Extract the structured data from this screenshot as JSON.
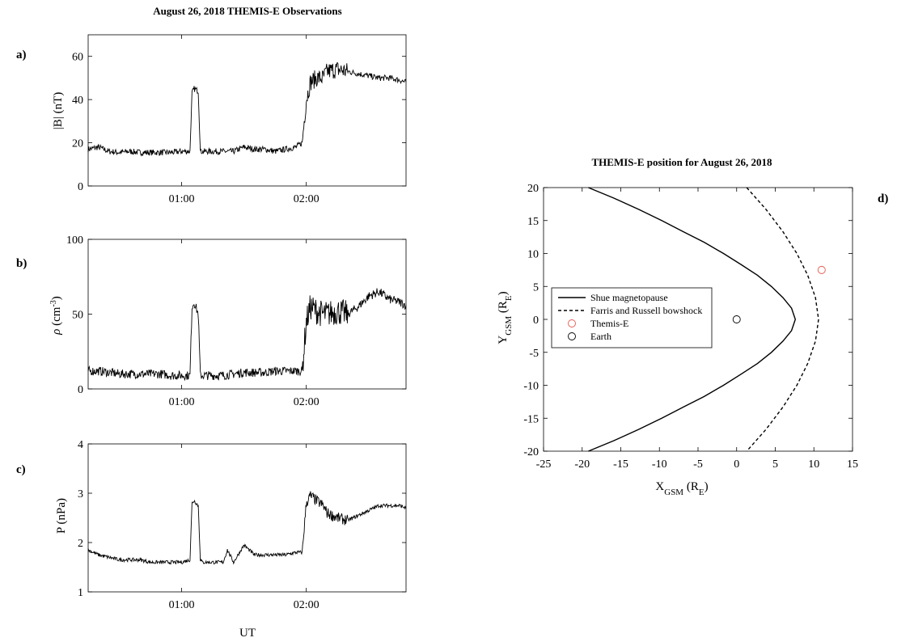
{
  "figure": {
    "left_title": "August 26, 2018 THEMIS-E Observations",
    "right_title": "THEMIS-E position for August 26, 2018"
  },
  "chart_data": [
    {
      "type": "line",
      "panel": "a)",
      "xlabel": "",
      "ylabel": "|B| (nT)",
      "xlim": [
        "00:15",
        "02:48"
      ],
      "ylim": [
        0,
        70
      ],
      "yticks": [
        0,
        20,
        40,
        60
      ],
      "xticks": [
        "01:00",
        "02:00"
      ],
      "series": [
        {
          "color": "#000000",
          "x": [
            "00:15",
            "00:20",
            "00:25",
            "00:30",
            "00:35",
            "00:40",
            "00:45",
            "00:50",
            "00:55",
            "01:00",
            "01:04",
            "01:05",
            "01:06",
            "01:08",
            "01:09",
            "01:10",
            "01:15",
            "01:20",
            "01:25",
            "01:30",
            "01:35",
            "01:40",
            "01:45",
            "01:50",
            "01:55",
            "01:58",
            "02:00",
            "02:02",
            "02:05",
            "02:08",
            "02:10",
            "02:15",
            "02:20",
            "02:25",
            "02:30",
            "02:35",
            "02:40",
            "02:45",
            "02:48"
          ],
          "values": [
            17,
            18,
            16,
            15.5,
            16,
            15.5,
            15.5,
            15.5,
            15.5,
            16,
            16,
            43,
            45,
            44,
            16,
            16,
            16,
            16,
            16,
            18,
            17,
            17,
            16,
            17,
            18,
            20,
            40,
            48,
            50,
            50,
            53,
            54,
            53,
            52,
            51,
            50,
            50,
            49,
            48
          ]
        }
      ]
    },
    {
      "type": "line",
      "panel": "b)",
      "xlabel": "",
      "ylabel": "ρ (cm-3)",
      "xlim": [
        "00:15",
        "02:48"
      ],
      "ylim": [
        0,
        100
      ],
      "yticks": [
        0,
        50,
        100
      ],
      "xticks": [
        "01:00",
        "02:00"
      ],
      "series": [
        {
          "color": "#000000",
          "x": [
            "00:15",
            "00:20",
            "00:25",
            "00:30",
            "00:35",
            "00:40",
            "00:45",
            "00:50",
            "00:55",
            "01:00",
            "01:04",
            "01:05",
            "01:06",
            "01:08",
            "01:09",
            "01:10",
            "01:15",
            "01:20",
            "01:25",
            "01:30",
            "01:35",
            "01:40",
            "01:45",
            "01:50",
            "01:55",
            "01:58",
            "02:00",
            "02:02",
            "02:05",
            "02:08",
            "02:10",
            "02:15",
            "02:20",
            "02:25",
            "02:30",
            "02:35",
            "02:40",
            "02:45",
            "02:48"
          ],
          "values": [
            12,
            12,
            11,
            10,
            10,
            10,
            10,
            10,
            9,
            9,
            9,
            55,
            58,
            50,
            9,
            9,
            9,
            9,
            10,
            11,
            11,
            11,
            12,
            12,
            12,
            12,
            45,
            55,
            52,
            50,
            50,
            52,
            50,
            55,
            62,
            65,
            60,
            58,
            56
          ]
        }
      ]
    },
    {
      "type": "line",
      "panel": "c)",
      "xlabel": "UT",
      "ylabel": "P (nPa)",
      "xlim": [
        "00:15",
        "02:48"
      ],
      "ylim": [
        1,
        4
      ],
      "yticks": [
        1,
        2,
        3,
        4
      ],
      "xticks": [
        "01:00",
        "02:00"
      ],
      "series": [
        {
          "color": "#000000",
          "x": [
            "00:15",
            "00:20",
            "00:25",
            "00:30",
            "00:35",
            "00:40",
            "00:45",
            "00:50",
            "00:55",
            "01:00",
            "01:04",
            "01:05",
            "01:06",
            "01:08",
            "01:09",
            "01:10",
            "01:15",
            "01:20",
            "01:22",
            "01:25",
            "01:30",
            "01:35",
            "01:40",
            "01:45",
            "01:50",
            "01:55",
            "01:58",
            "02:00",
            "02:02",
            "02:05",
            "02:08",
            "02:10",
            "02:15",
            "02:20",
            "02:25",
            "02:30",
            "02:35",
            "02:40",
            "02:45",
            "02:48"
          ],
          "values": [
            1.85,
            1.75,
            1.7,
            1.65,
            1.65,
            1.65,
            1.6,
            1.6,
            1.6,
            1.6,
            1.65,
            2.8,
            2.85,
            2.75,
            1.65,
            1.6,
            1.6,
            1.6,
            1.85,
            1.6,
            1.95,
            1.75,
            1.75,
            1.75,
            1.75,
            1.8,
            1.8,
            2.8,
            2.95,
            2.85,
            2.75,
            2.6,
            2.5,
            2.45,
            2.55,
            2.65,
            2.75,
            2.75,
            2.75,
            2.7
          ]
        }
      ]
    },
    {
      "type": "line",
      "panel": "d)",
      "title": "THEMIS-E position for August 26, 2018",
      "xlabel": "XGSM (RE)",
      "ylabel": "YGSM (RE)",
      "xlim": [
        -25,
        15
      ],
      "ylim": [
        -20,
        20
      ],
      "xticks": [
        -25,
        -20,
        -15,
        -10,
        -5,
        0,
        5,
        10,
        15
      ],
      "yticks": [
        -20,
        -15,
        -10,
        -5,
        0,
        5,
        10,
        15,
        20
      ],
      "legend_position": "center-left",
      "series": [
        {
          "name": "Shue magnetopause",
          "style": "solid",
          "color": "#000000",
          "x": [
            -19.2,
            -15.9,
            -12.7,
            -9.7,
            -6.9,
            -4.2,
            -1.7,
            0.6,
            2.7,
            4.5,
            6.0,
            7.1,
            7.6,
            7.6,
            7.1,
            6.0,
            4.5,
            2.7,
            0.6,
            -1.7,
            -4.2,
            -6.9,
            -9.7,
            -12.7,
            -15.9,
            -19.2
          ],
          "values": [
            20,
            18.4,
            16.7,
            15,
            13.3,
            11.7,
            10,
            8.3,
            6.7,
            5,
            3.3,
            1.7,
            0,
            0,
            -1.7,
            -3.3,
            -5,
            -6.7,
            -8.3,
            -10,
            -11.7,
            -13.3,
            -15,
            -16.7,
            -18.4,
            -20
          ]
        },
        {
          "name": "Farris and Russell bowshock",
          "style": "dashed",
          "color": "#000000",
          "x": [
            1.3,
            3.8,
            6.0,
            7.8,
            9.2,
            10.2,
            10.6,
            10.6,
            10.2,
            9.2,
            7.8,
            6.0,
            3.8,
            1.3
          ],
          "values": [
            20,
            16.7,
            13.3,
            10,
            6.7,
            3.3,
            0,
            0,
            -3.3,
            -6.7,
            -10,
            -13.3,
            -16.7,
            -20
          ]
        },
        {
          "name": "Themis-E",
          "style": "marker",
          "color": "#e8574f",
          "x": [
            11
          ],
          "values": [
            7.5
          ]
        },
        {
          "name": "Earth",
          "style": "marker",
          "color": "#000000",
          "x": [
            0
          ],
          "values": [
            0
          ]
        }
      ]
    }
  ]
}
